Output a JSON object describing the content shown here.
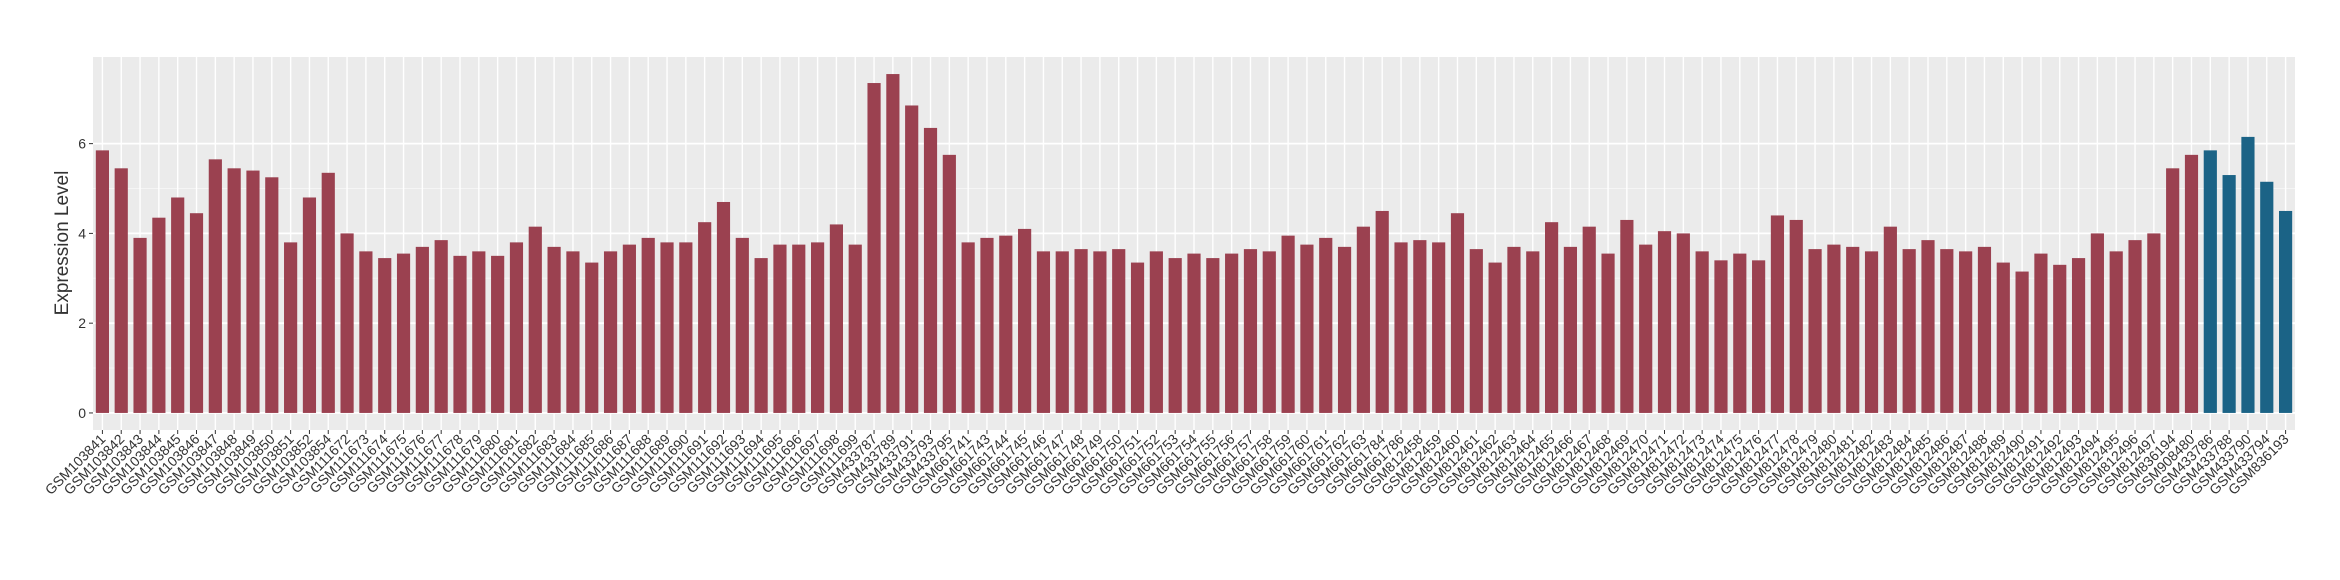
{
  "chart_data": {
    "type": "bar",
    "y_label": "Expression Level",
    "categories": [
      "GSM103841",
      "GSM103842",
      "GSM103843",
      "GSM103844",
      "GSM103845",
      "GSM103846",
      "GSM103847",
      "GSM103848",
      "GSM103849",
      "GSM103850",
      "GSM103851",
      "GSM103852",
      "GSM103854",
      "GSM111672",
      "GSM111673",
      "GSM111674",
      "GSM111675",
      "GSM111676",
      "GSM111677",
      "GSM111678",
      "GSM111679",
      "GSM111680",
      "GSM111681",
      "GSM111682",
      "GSM111683",
      "GSM111684",
      "GSM111685",
      "GSM111686",
      "GSM111687",
      "GSM111688",
      "GSM111689",
      "GSM111690",
      "GSM111691",
      "GSM111692",
      "GSM111693",
      "GSM111694",
      "GSM111695",
      "GSM111696",
      "GSM111697",
      "GSM111698",
      "GSM111699",
      "GSM433787",
      "GSM433789",
      "GSM433791",
      "GSM433793",
      "GSM433795",
      "GSM661741",
      "GSM661743",
      "GSM661744",
      "GSM661745",
      "GSM661746",
      "GSM661747",
      "GSM661748",
      "GSM661749",
      "GSM661750",
      "GSM661751",
      "GSM661752",
      "GSM661753",
      "GSM661754",
      "GSM661755",
      "GSM661756",
      "GSM661757",
      "GSM661758",
      "GSM661759",
      "GSM661760",
      "GSM661761",
      "GSM661762",
      "GSM661763",
      "GSM661784",
      "GSM661786",
      "GSM812458",
      "GSM812459",
      "GSM812460",
      "GSM812461",
      "GSM812462",
      "GSM812463",
      "GSM812464",
      "GSM812465",
      "GSM812466",
      "GSM812467",
      "GSM812468",
      "GSM812469",
      "GSM812470",
      "GSM812471",
      "GSM812472",
      "GSM812473",
      "GSM812474",
      "GSM812475",
      "GSM812476",
      "GSM812477",
      "GSM812478",
      "GSM812479",
      "GSM812480",
      "GSM812481",
      "GSM812482",
      "GSM812483",
      "GSM812484",
      "GSM812485",
      "GSM812486",
      "GSM812487",
      "GSM812488",
      "GSM812489",
      "GSM812490",
      "GSM812491",
      "GSM812492",
      "GSM812493",
      "GSM812494",
      "GSM812495",
      "GSM812496",
      "GSM812497",
      "GSM836194",
      "GSM908480",
      "GSM433786",
      "GSM433788",
      "GSM433790",
      "GSM433794",
      "GSM836193"
    ],
    "values": [
      5.85,
      5.45,
      3.9,
      4.35,
      4.8,
      4.45,
      5.65,
      5.45,
      5.4,
      5.25,
      3.8,
      4.8,
      5.35,
      4.0,
      3.6,
      3.45,
      3.55,
      3.7,
      3.85,
      3.5,
      3.6,
      3.5,
      3.8,
      4.15,
      3.7,
      3.6,
      3.35,
      3.6,
      3.75,
      3.9,
      3.8,
      3.8,
      4.25,
      4.7,
      3.9,
      3.45,
      3.75,
      3.75,
      3.8,
      4.2,
      3.75,
      7.35,
      7.55,
      6.85,
      6.35,
      5.75,
      3.8,
      3.9,
      3.95,
      4.1,
      3.6,
      3.6,
      3.65,
      3.6,
      3.65,
      3.35,
      3.6,
      3.45,
      3.55,
      3.45,
      3.55,
      3.65,
      3.6,
      3.95,
      3.75,
      3.9,
      3.7,
      4.15,
      4.5,
      3.8,
      3.85,
      3.8,
      4.45,
      3.65,
      3.35,
      3.7,
      3.6,
      4.25,
      3.7,
      4.15,
      3.55,
      4.3,
      3.75,
      4.05,
      4.0,
      3.6,
      3.4,
      3.55,
      3.4,
      4.4,
      4.3,
      3.65,
      3.75,
      3.7,
      3.6,
      4.15,
      3.65,
      3.85,
      3.65,
      3.6,
      3.7,
      3.35,
      3.15,
      3.55,
      3.3,
      3.45,
      4.0,
      3.6,
      3.85,
      4.0,
      5.45,
      5.75,
      5.85,
      5.3,
      6.15,
      5.15,
      4.5
    ],
    "color": "#9b4150",
    "highlight_color": "#1b6386",
    "highlight_from": 112,
    "ylim": [
      -0.38,
      7.93
    ],
    "yticks": [
      0,
      2,
      4,
      6
    ],
    "grid": true
  }
}
